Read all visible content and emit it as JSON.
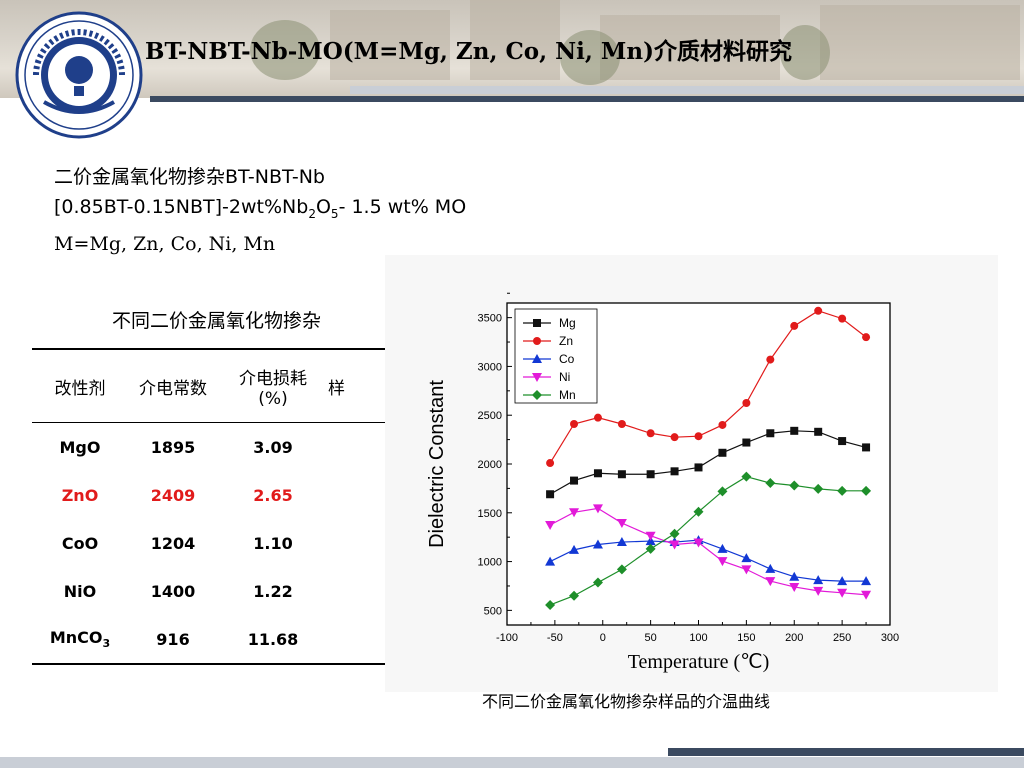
{
  "header": {
    "title": "BT-NBT-Nb-MO(M=Mg, Zn, Co, Ni, Mn)介质材料研究",
    "logo": {
      "icon": "university-seal-icon"
    }
  },
  "intro": {
    "line1": "二价金属氧化物掺杂BT-NBT-Nb",
    "line2": {
      "pre": "[0.85BT-0.15NBT]-2wt%Nb",
      "sub1": "2",
      "mid": "O",
      "sub2": "5",
      "post": "- 1.5 wt% MO"
    },
    "line3": "M=Mg, Zn, Co, Ni, Mn"
  },
  "table": {
    "caption": "不同二价金属氧化物掺杂",
    "headers": [
      "改性剂",
      "介电常数",
      "介电损耗\n(%)",
      "样"
    ],
    "rows": [
      {
        "modifier": "MgO",
        "constant": "1895",
        "loss": "3.09",
        "highlight": false
      },
      {
        "modifier": "ZnO",
        "constant": "2409",
        "loss": "2.65",
        "highlight": true
      },
      {
        "modifier": "CoO",
        "constant": "1204",
        "loss": "1.10",
        "highlight": false
      },
      {
        "modifier": "NiO",
        "constant": "1400",
        "loss": "1.22",
        "highlight": false
      },
      {
        "modifier": "MnCO",
        "modifier_sub": "3",
        "constant": "916",
        "loss": "11.68",
        "highlight": false
      }
    ],
    "highlight_color": "#e11b1b"
  },
  "figure_caption": "不同二价金属氧化物掺杂样品的介温曲线",
  "chart_data": {
    "type": "line",
    "title": "",
    "xlabel": "Temperature (℃)",
    "ylabel": "Dielectric Constant",
    "xlim": [
      -100,
      300
    ],
    "ylim": [
      350,
      3650
    ],
    "xticks": [
      -100,
      -50,
      0,
      50,
      100,
      150,
      200,
      250,
      300
    ],
    "yticks": [
      500,
      1000,
      1500,
      2000,
      2500,
      3000,
      3500
    ],
    "legend_position": "top-left",
    "grid": false,
    "x": [
      -55,
      -30,
      -5,
      20,
      50,
      75,
      100,
      125,
      150,
      175,
      200,
      225,
      250,
      275
    ],
    "series": [
      {
        "name": "Mg",
        "color": "#111111",
        "marker": "square",
        "values": [
          1690,
          1830,
          1905,
          1895,
          1895,
          1925,
          1965,
          2115,
          2220,
          2315,
          2340,
          2330,
          2235,
          2170
        ]
      },
      {
        "name": "Zn",
        "color": "#e11b1b",
        "marker": "circle",
        "values": [
          2010,
          2410,
          2475,
          2410,
          2315,
          2275,
          2285,
          2400,
          2625,
          3070,
          3415,
          3570,
          3490,
          3300
        ]
      },
      {
        "name": "Co",
        "color": "#1238d4",
        "marker": "triangle-up",
        "values": [
          1000,
          1120,
          1175,
          1200,
          1210,
          1200,
          1220,
          1130,
          1035,
          925,
          845,
          810,
          800,
          800
        ]
      },
      {
        "name": "Ni",
        "color": "#e21ad8",
        "marker": "triangle-down",
        "values": [
          1375,
          1505,
          1545,
          1395,
          1265,
          1175,
          1195,
          1005,
          920,
          800,
          740,
          700,
          680,
          660
        ]
      },
      {
        "name": "Mn",
        "color": "#1e8f2a",
        "marker": "diamond",
        "values": [
          555,
          650,
          785,
          920,
          1130,
          1285,
          1510,
          1720,
          1870,
          1805,
          1780,
          1745,
          1725,
          1725
        ]
      }
    ]
  }
}
